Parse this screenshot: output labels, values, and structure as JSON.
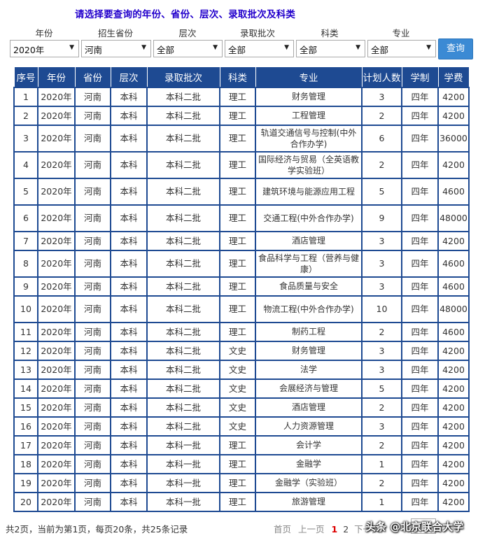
{
  "title": "请选择要查询的年份、省份、层次、录取批次及科类",
  "filters": {
    "labels": [
      "年份",
      "招生省份",
      "层次",
      "录取批次",
      "科类",
      "专业"
    ],
    "values": [
      "2020年",
      "河南",
      "全部",
      "全部",
      "全部",
      "全部"
    ],
    "dropdown_icon": "triangle-down"
  },
  "query_button": "查询",
  "table": {
    "headers": [
      "序号",
      "年份",
      "省份",
      "层次",
      "录取批次",
      "科类",
      "专业",
      "计划人数",
      "学制",
      "学费"
    ],
    "rows": [
      [
        "1",
        "2020年",
        "河南",
        "本科",
        "本科二批",
        "理工",
        "财务管理",
        "3",
        "四年",
        "4200"
      ],
      [
        "2",
        "2020年",
        "河南",
        "本科",
        "本科二批",
        "理工",
        "工程管理",
        "2",
        "四年",
        "4200"
      ],
      [
        "3",
        "2020年",
        "河南",
        "本科",
        "本科二批",
        "理工",
        "轨道交通信号与控制(中外合作办学)",
        "6",
        "四年",
        "36000"
      ],
      [
        "4",
        "2020年",
        "河南",
        "本科",
        "本科二批",
        "理工",
        "国际经济与贸易（全英语教学实验班）",
        "2",
        "四年",
        "4200"
      ],
      [
        "5",
        "2020年",
        "河南",
        "本科",
        "本科二批",
        "理工",
        "建筑环境与能源应用工程",
        "5",
        "四年",
        "4600"
      ],
      [
        "6",
        "2020年",
        "河南",
        "本科",
        "本科二批",
        "理工",
        "交通工程(中外合作办学)",
        "9",
        "四年",
        "48000"
      ],
      [
        "7",
        "2020年",
        "河南",
        "本科",
        "本科二批",
        "理工",
        "酒店管理",
        "3",
        "四年",
        "4200"
      ],
      [
        "8",
        "2020年",
        "河南",
        "本科",
        "本科二批",
        "理工",
        "食品科学与工程（营养与健康）",
        "3",
        "四年",
        "4600"
      ],
      [
        "9",
        "2020年",
        "河南",
        "本科",
        "本科二批",
        "理工",
        "食品质量与安全",
        "3",
        "四年",
        "4600"
      ],
      [
        "10",
        "2020年",
        "河南",
        "本科",
        "本科二批",
        "理工",
        "物流工程(中外合作办学)",
        "10",
        "四年",
        "48000"
      ],
      [
        "11",
        "2020年",
        "河南",
        "本科",
        "本科二批",
        "理工",
        "制药工程",
        "2",
        "四年",
        "4600"
      ],
      [
        "12",
        "2020年",
        "河南",
        "本科",
        "本科二批",
        "文史",
        "财务管理",
        "3",
        "四年",
        "4200"
      ],
      [
        "13",
        "2020年",
        "河南",
        "本科",
        "本科二批",
        "文史",
        "法学",
        "3",
        "四年",
        "4200"
      ],
      [
        "14",
        "2020年",
        "河南",
        "本科",
        "本科二批",
        "文史",
        "会展经济与管理",
        "5",
        "四年",
        "4200"
      ],
      [
        "15",
        "2020年",
        "河南",
        "本科",
        "本科二批",
        "文史",
        "酒店管理",
        "2",
        "四年",
        "4200"
      ],
      [
        "16",
        "2020年",
        "河南",
        "本科",
        "本科二批",
        "文史",
        "人力资源管理",
        "3",
        "四年",
        "4200"
      ],
      [
        "17",
        "2020年",
        "河南",
        "本科",
        "本科一批",
        "理工",
        "会计学",
        "2",
        "四年",
        "4200"
      ],
      [
        "18",
        "2020年",
        "河南",
        "本科",
        "本科一批",
        "理工",
        "金融学",
        "1",
        "四年",
        "4200"
      ],
      [
        "19",
        "2020年",
        "河南",
        "本科",
        "本科一批",
        "理工",
        "金融学（实验班）",
        "2",
        "四年",
        "4200"
      ],
      [
        "20",
        "2020年",
        "河南",
        "本科",
        "本科一批",
        "理工",
        "旅游管理",
        "1",
        "四年",
        "4200"
      ]
    ]
  },
  "footer": {
    "summary": "共2页，当前为第1页，每页20条，共25条记录",
    "first": "首页",
    "prev": "上一页",
    "pages": [
      "1",
      "2"
    ],
    "next": "下一页"
  },
  "watermark": "头条 @北京联合大学"
}
